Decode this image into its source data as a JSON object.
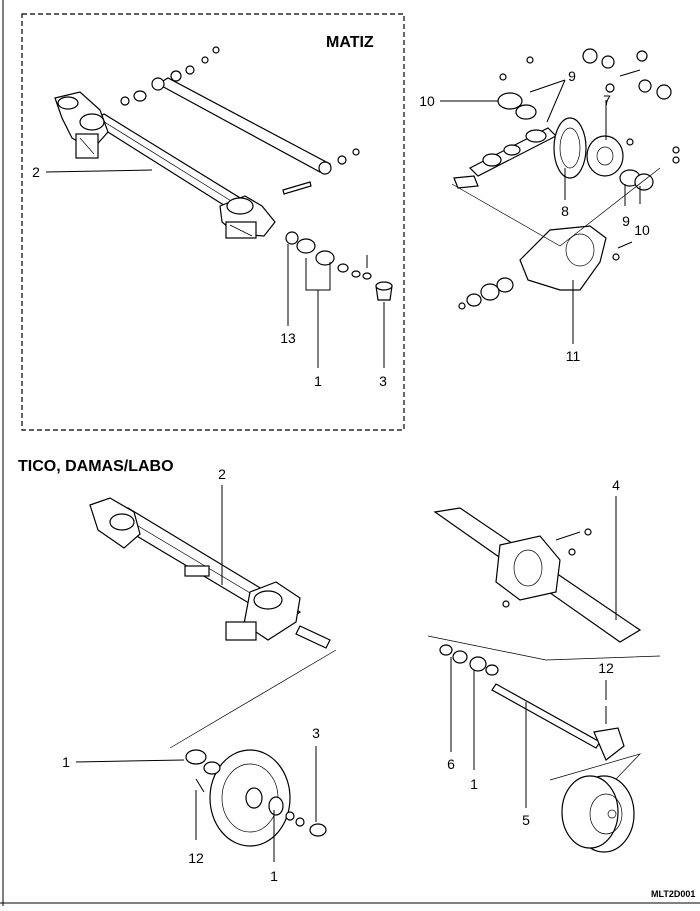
{
  "sections": {
    "matiz": "MATIZ",
    "tico": "TICO, DAMAS/LABO"
  },
  "callouts": {
    "m_2": "2",
    "m_13": "13",
    "m_1": "1",
    "m_3": "3",
    "d_10a": "10",
    "d_9a": "9",
    "d_7": "7",
    "d_8": "8",
    "d_9b": "9",
    "d_10b": "10",
    "d_11": "11",
    "t_2": "2",
    "t_1a": "1",
    "t_12": "12",
    "t_1b": "1",
    "t_3": "3",
    "r_4": "4",
    "r_12": "12",
    "r_6": "6",
    "r_1": "1",
    "r_5": "5"
  },
  "figure_code": "MLT2D001"
}
